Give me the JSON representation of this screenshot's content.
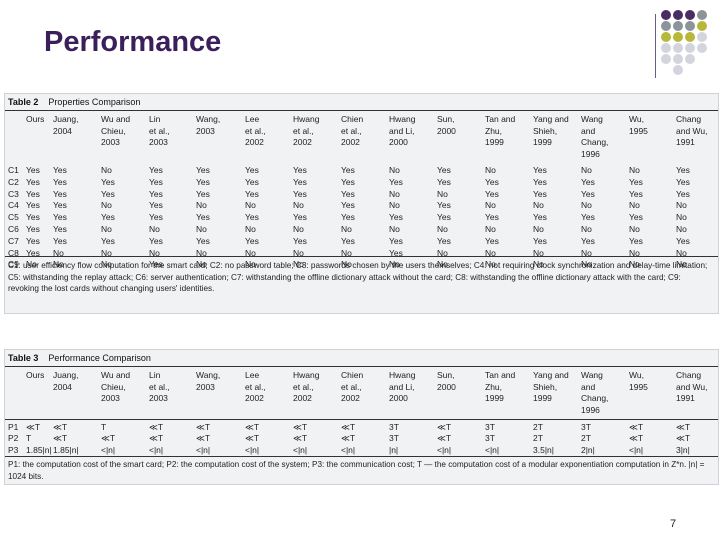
{
  "slide": {
    "title": "Performance",
    "page_number": "7",
    "accent_dot_colors": [
      "#4a2d63",
      "#8a9499",
      "#b7b83a",
      "#d3d4dd"
    ]
  },
  "table2": {
    "label": "Table 2",
    "name": "Properties Comparison",
    "columns": [
      "Ours",
      "Juang,\n2004",
      "Wu and\nChieu,\n2003",
      "Lin\net al.,\n2003",
      "Wang,\n2003",
      "Lee\net al.,\n2002",
      "Hwang\net al.,\n2002",
      "Chien\net al.,\n2002",
      "Hwang\nand Li,\n2000",
      "Sun,\n2000",
      "Tan and\nZhu,\n1999",
      "Yang and\nShieh,\n1999",
      "Wang\nand\nChang,\n1996",
      "Wu,\n1995",
      "Chang\nand Wu,\n1991"
    ],
    "rows": [
      {
        "label": "C1",
        "cells": [
          "Yes",
          "Yes",
          "No",
          "Yes",
          "Yes",
          "Yes",
          "Yes",
          "Yes",
          "No",
          "Yes",
          "No",
          "Yes",
          "No",
          "No",
          "Yes"
        ]
      },
      {
        "label": "C2",
        "cells": [
          "Yes",
          "Yes",
          "Yes",
          "Yes",
          "Yes",
          "Yes",
          "Yes",
          "Yes",
          "Yes",
          "Yes",
          "Yes",
          "Yes",
          "Yes",
          "Yes",
          "Yes"
        ]
      },
      {
        "label": "C3",
        "cells": [
          "Yes",
          "Yes",
          "Yes",
          "Yes",
          "Yes",
          "Yes",
          "Yes",
          "Yes",
          "No",
          "No",
          "Yes",
          "Yes",
          "Yes",
          "Yes",
          "Yes"
        ]
      },
      {
        "label": "C4",
        "cells": [
          "Yes",
          "Yes",
          "No",
          "Yes",
          "No",
          "No",
          "No",
          "Yes",
          "No",
          "Yes",
          "No",
          "No",
          "No",
          "No",
          "No"
        ]
      },
      {
        "label": "C5",
        "cells": [
          "Yes",
          "Yes",
          "Yes",
          "Yes",
          "Yes",
          "Yes",
          "Yes",
          "Yes",
          "Yes",
          "Yes",
          "Yes",
          "Yes",
          "Yes",
          "Yes",
          "No"
        ]
      },
      {
        "label": "C6",
        "cells": [
          "Yes",
          "Yes",
          "No",
          "No",
          "No",
          "No",
          "No",
          "No",
          "No",
          "No",
          "No",
          "No",
          "No",
          "No",
          "No"
        ]
      },
      {
        "label": "C7",
        "cells": [
          "Yes",
          "Yes",
          "Yes",
          "Yes",
          "Yes",
          "Yes",
          "Yes",
          "Yes",
          "Yes",
          "Yes",
          "Yes",
          "Yes",
          "Yes",
          "Yes",
          "Yes"
        ]
      },
      {
        "label": "C8",
        "cells": [
          "Yes",
          "No",
          "No",
          "No",
          "No",
          "No",
          "No",
          "No",
          "Yes",
          "No",
          "No",
          "No",
          "No",
          "No",
          "No"
        ]
      },
      {
        "label": "C9",
        "cells": [
          "No",
          "No",
          "No",
          "Yes",
          "No",
          "No",
          "No",
          "No",
          "No",
          "No",
          "No",
          "No",
          "No",
          "No",
          "No"
        ]
      }
    ],
    "footnote": "C1: user efficiency flow computation for the smart card; C2: no password table; C3: passwords chosen by the users themselves; C4: not requiring clock synchronization and delay-time limitation; C5: withstanding the replay attack; C6: server authentication; C7: withstanding the offline dictionary attack without the card; C8: withstanding the offline dictionary attack with the card; C9: revoking the lost cards without changing users' identities."
  },
  "table3": {
    "label": "Table 3",
    "name": "Performance Comparison",
    "columns": [
      "Ours",
      "Juang,\n2004",
      "Wu and\nChieu,\n2003",
      "Lin\net al.,\n2003",
      "Wang,\n2003",
      "Lee\net al.,\n2002",
      "Hwang\net al.,\n2002",
      "Chien\net al.,\n2002",
      "Hwang\nand Li,\n2000",
      "Sun,\n2000",
      "Tan and\nZhu,\n1999",
      "Yang and\nShieh,\n1999",
      "Wang\nand\nChang,\n1996",
      "Wu,\n1995",
      "Chang\nand Wu,\n1991"
    ],
    "rows": [
      {
        "label": "P1",
        "cells": [
          "≪T",
          "≪T",
          "T",
          "≪T",
          "≪T",
          "≪T",
          "≪T",
          "≪T",
          "3T",
          "≪T",
          "3T",
          "2T",
          "3T",
          "≪T",
          "≪T"
        ]
      },
      {
        "label": "P2",
        "cells": [
          "T",
          "≪T",
          "≪T",
          "≪T",
          "≪T",
          "≪T",
          "≪T",
          "≪T",
          "3T",
          "≪T",
          "3T",
          "2T",
          "2T",
          "≪T",
          "≪T"
        ]
      },
      {
        "label": "P3",
        "cells": [
          "1.85|n|",
          "1.85|n|",
          "<|n|",
          "<|n|",
          "<|n|",
          "<|n|",
          "<|n|",
          "<|n|",
          "|n|",
          "<|n|",
          "<|n|",
          "3.5|n|",
          "2|n|",
          "<|n|",
          "3|n|"
        ]
      }
    ],
    "footnote": "P1: the computation cost of the smart card; P2: the computation cost of the system; P3: the communication cost; T — the computation cost of a modular exponentiation computation in Z*n. |n| = 1024 bits."
  }
}
